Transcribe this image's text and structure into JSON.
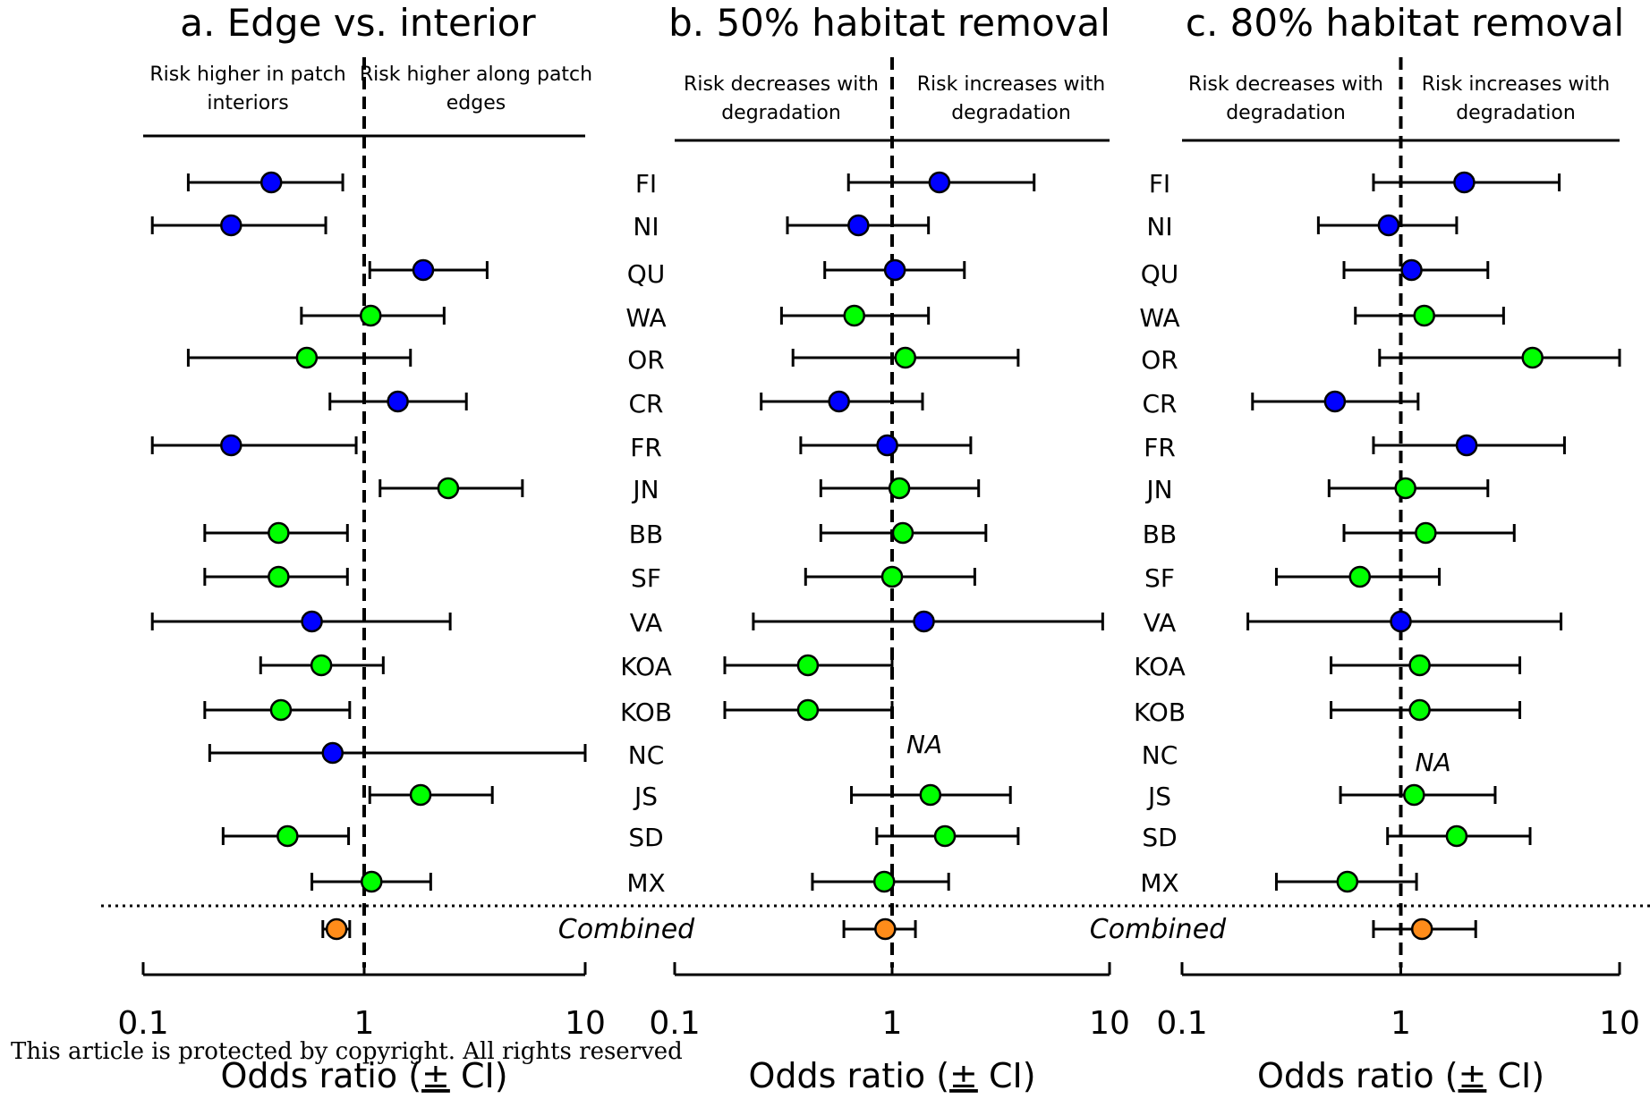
{
  "chart_data": [
    {
      "type": "scatter",
      "title": "a. Edge vs. interior",
      "left_label": "Risk higher in patch interiors",
      "right_label": "Risk higher along patch edges",
      "xlabel": "Odds ratio (± CI)",
      "xscale": "log",
      "xlim": [
        0.1,
        10
      ],
      "xticks": [
        "0.1",
        "1",
        "10"
      ],
      "reference_line": 1,
      "combined_label": "",
      "points": [
        {
          "site": "FI",
          "or": 0.38,
          "lo": 0.16,
          "hi": 0.8,
          "color": "#0000ff"
        },
        {
          "site": "NI",
          "or": 0.25,
          "lo": 0.11,
          "hi": 0.67,
          "color": "#0000ff"
        },
        {
          "site": "QU",
          "or": 1.85,
          "lo": 1.06,
          "hi": 3.6,
          "color": "#0000ff"
        },
        {
          "site": "WA",
          "or": 1.07,
          "lo": 0.52,
          "hi": 2.3,
          "color": "#00ff00"
        },
        {
          "site": "OR",
          "or": 0.55,
          "lo": 0.16,
          "hi": 1.62,
          "color": "#00ff00"
        },
        {
          "site": "CR",
          "or": 1.42,
          "lo": 0.7,
          "hi": 2.9,
          "color": "#0000ff"
        },
        {
          "site": "FR",
          "or": 0.25,
          "lo": 0.11,
          "hi": 0.92,
          "color": "#0000ff"
        },
        {
          "site": "JN",
          "or": 2.4,
          "lo": 1.18,
          "hi": 5.2,
          "color": "#00ff00"
        },
        {
          "site": "BB",
          "or": 0.41,
          "lo": 0.19,
          "hi": 0.84,
          "color": "#00ff00"
        },
        {
          "site": "SF",
          "or": 0.41,
          "lo": 0.19,
          "hi": 0.84,
          "color": "#00ff00"
        },
        {
          "site": "VA",
          "or": 0.58,
          "lo": 0.11,
          "hi": 2.45,
          "color": "#0000ff"
        },
        {
          "site": "KOA",
          "or": 0.64,
          "lo": 0.34,
          "hi": 1.22,
          "color": "#00ff00"
        },
        {
          "site": "KOB",
          "or": 0.42,
          "lo": 0.19,
          "hi": 0.86,
          "color": "#00ff00"
        },
        {
          "site": "NC",
          "or": 0.72,
          "lo": 0.2,
          "hi": 10,
          "color": "#0000ff"
        },
        {
          "site": "JS",
          "or": 1.8,
          "lo": 1.06,
          "hi": 3.8,
          "color": "#00ff00"
        },
        {
          "site": "SD",
          "or": 0.45,
          "lo": 0.23,
          "hi": 0.85,
          "color": "#00ff00"
        },
        {
          "site": "MX",
          "or": 1.08,
          "lo": 0.58,
          "hi": 2.0,
          "color": "#00ff00"
        }
      ],
      "combined": {
        "or": 0.75,
        "lo": 0.65,
        "hi": 0.86,
        "color": "#ff8c1a"
      }
    },
    {
      "type": "scatter",
      "title": "b. 50% habitat removal",
      "left_label": "Risk decreases with degradation",
      "right_label": "Risk increases with degradation",
      "xlabel": "Odds ratio (± CI)",
      "xscale": "log",
      "xlim": [
        0.1,
        10
      ],
      "xticks": [
        "0.1",
        "1",
        "10"
      ],
      "reference_line": 1,
      "combined_label": "Combined",
      "na_label": "NA",
      "points": [
        {
          "site": "FI",
          "or": 1.65,
          "lo": 0.63,
          "hi": 4.5,
          "color": "#0000ff"
        },
        {
          "site": "NI",
          "or": 0.7,
          "lo": 0.33,
          "hi": 1.47,
          "color": "#0000ff"
        },
        {
          "site": "QU",
          "or": 1.03,
          "lo": 0.49,
          "hi": 2.15,
          "color": "#0000ff"
        },
        {
          "site": "WA",
          "or": 0.67,
          "lo": 0.31,
          "hi": 1.47,
          "color": "#00ff00"
        },
        {
          "site": "OR",
          "or": 1.15,
          "lo": 0.35,
          "hi": 3.8,
          "color": "#00ff00"
        },
        {
          "site": "CR",
          "or": 0.57,
          "lo": 0.25,
          "hi": 1.38,
          "color": "#0000ff"
        },
        {
          "site": "FR",
          "or": 0.95,
          "lo": 0.38,
          "hi": 2.3,
          "color": "#0000ff"
        },
        {
          "site": "JN",
          "or": 1.08,
          "lo": 0.47,
          "hi": 2.5,
          "color": "#00ff00"
        },
        {
          "site": "BB",
          "or": 1.12,
          "lo": 0.47,
          "hi": 2.7,
          "color": "#00ff00"
        },
        {
          "site": "SF",
          "or": 1.0,
          "lo": 0.4,
          "hi": 2.4,
          "color": "#00ff00"
        },
        {
          "site": "VA",
          "or": 1.4,
          "lo": 0.23,
          "hi": 9.3,
          "color": "#0000ff"
        },
        {
          "site": "KOA",
          "or": 0.41,
          "lo": 0.17,
          "hi": 1.0,
          "color": "#00ff00"
        },
        {
          "site": "KOB",
          "or": 0.41,
          "lo": 0.17,
          "hi": 1.0,
          "color": "#00ff00"
        },
        {
          "site": "NC",
          "na": true
        },
        {
          "site": "JS",
          "or": 1.5,
          "lo": 0.65,
          "hi": 3.5,
          "color": "#00ff00"
        },
        {
          "site": "SD",
          "or": 1.75,
          "lo": 0.85,
          "hi": 3.8,
          "color": "#00ff00"
        },
        {
          "site": "MX",
          "or": 0.92,
          "lo": 0.43,
          "hi": 1.82,
          "color": "#00ff00"
        }
      ],
      "combined": {
        "or": 0.93,
        "lo": 0.6,
        "hi": 1.28,
        "color": "#ff8c1a"
      }
    },
    {
      "type": "scatter",
      "title": "c. 80% habitat removal",
      "left_label": "Risk decreases with degradation",
      "right_label": "Risk increases with degradation",
      "xlabel": "Odds ratio (± CI)",
      "xscale": "log",
      "xlim": [
        0.1,
        10
      ],
      "xticks": [
        "0.1",
        "1",
        "10"
      ],
      "reference_line": 1,
      "combined_label": "Combined",
      "na_label": "NA",
      "points": [
        {
          "site": "FI",
          "or": 1.95,
          "lo": 0.75,
          "hi": 5.3,
          "color": "#0000ff"
        },
        {
          "site": "NI",
          "or": 0.88,
          "lo": 0.42,
          "hi": 1.8,
          "color": "#0000ff"
        },
        {
          "site": "QU",
          "or": 1.12,
          "lo": 0.55,
          "hi": 2.5,
          "color": "#0000ff"
        },
        {
          "site": "WA",
          "or": 1.28,
          "lo": 0.62,
          "hi": 2.95,
          "color": "#00ff00"
        },
        {
          "site": "OR",
          "or": 4.0,
          "lo": 0.8,
          "hi": 10,
          "color": "#00ff00"
        },
        {
          "site": "CR",
          "or": 0.5,
          "lo": 0.21,
          "hi": 1.2,
          "color": "#0000ff"
        },
        {
          "site": "FR",
          "or": 2.0,
          "lo": 0.75,
          "hi": 5.6,
          "color": "#0000ff"
        },
        {
          "site": "JN",
          "or": 1.05,
          "lo": 0.47,
          "hi": 2.5,
          "color": "#00ff00"
        },
        {
          "site": "BB",
          "or": 1.3,
          "lo": 0.55,
          "hi": 3.3,
          "color": "#00ff00"
        },
        {
          "site": "SF",
          "or": 0.65,
          "lo": 0.27,
          "hi": 1.5,
          "color": "#00ff00"
        },
        {
          "site": "VA",
          "or": 1.0,
          "lo": 0.2,
          "hi": 5.4,
          "color": "#0000ff"
        },
        {
          "site": "KOA",
          "or": 1.22,
          "lo": 0.48,
          "hi": 3.5,
          "color": "#00ff00"
        },
        {
          "site": "KOB",
          "or": 1.22,
          "lo": 0.48,
          "hi": 3.5,
          "color": "#00ff00"
        },
        {
          "site": "NC",
          "na": true
        },
        {
          "site": "JS",
          "or": 1.15,
          "lo": 0.53,
          "hi": 2.7,
          "color": "#00ff00"
        },
        {
          "site": "SD",
          "or": 1.8,
          "lo": 0.87,
          "hi": 3.9,
          "color": "#00ff00"
        },
        {
          "site": "MX",
          "or": 0.57,
          "lo": 0.27,
          "hi": 1.18,
          "color": "#00ff00"
        }
      ],
      "combined": {
        "or": 1.25,
        "lo": 0.75,
        "hi": 2.2,
        "color": "#ff8c1a"
      }
    }
  ],
  "copyright_notice": "This article is protected by copyright. All rights reserved"
}
